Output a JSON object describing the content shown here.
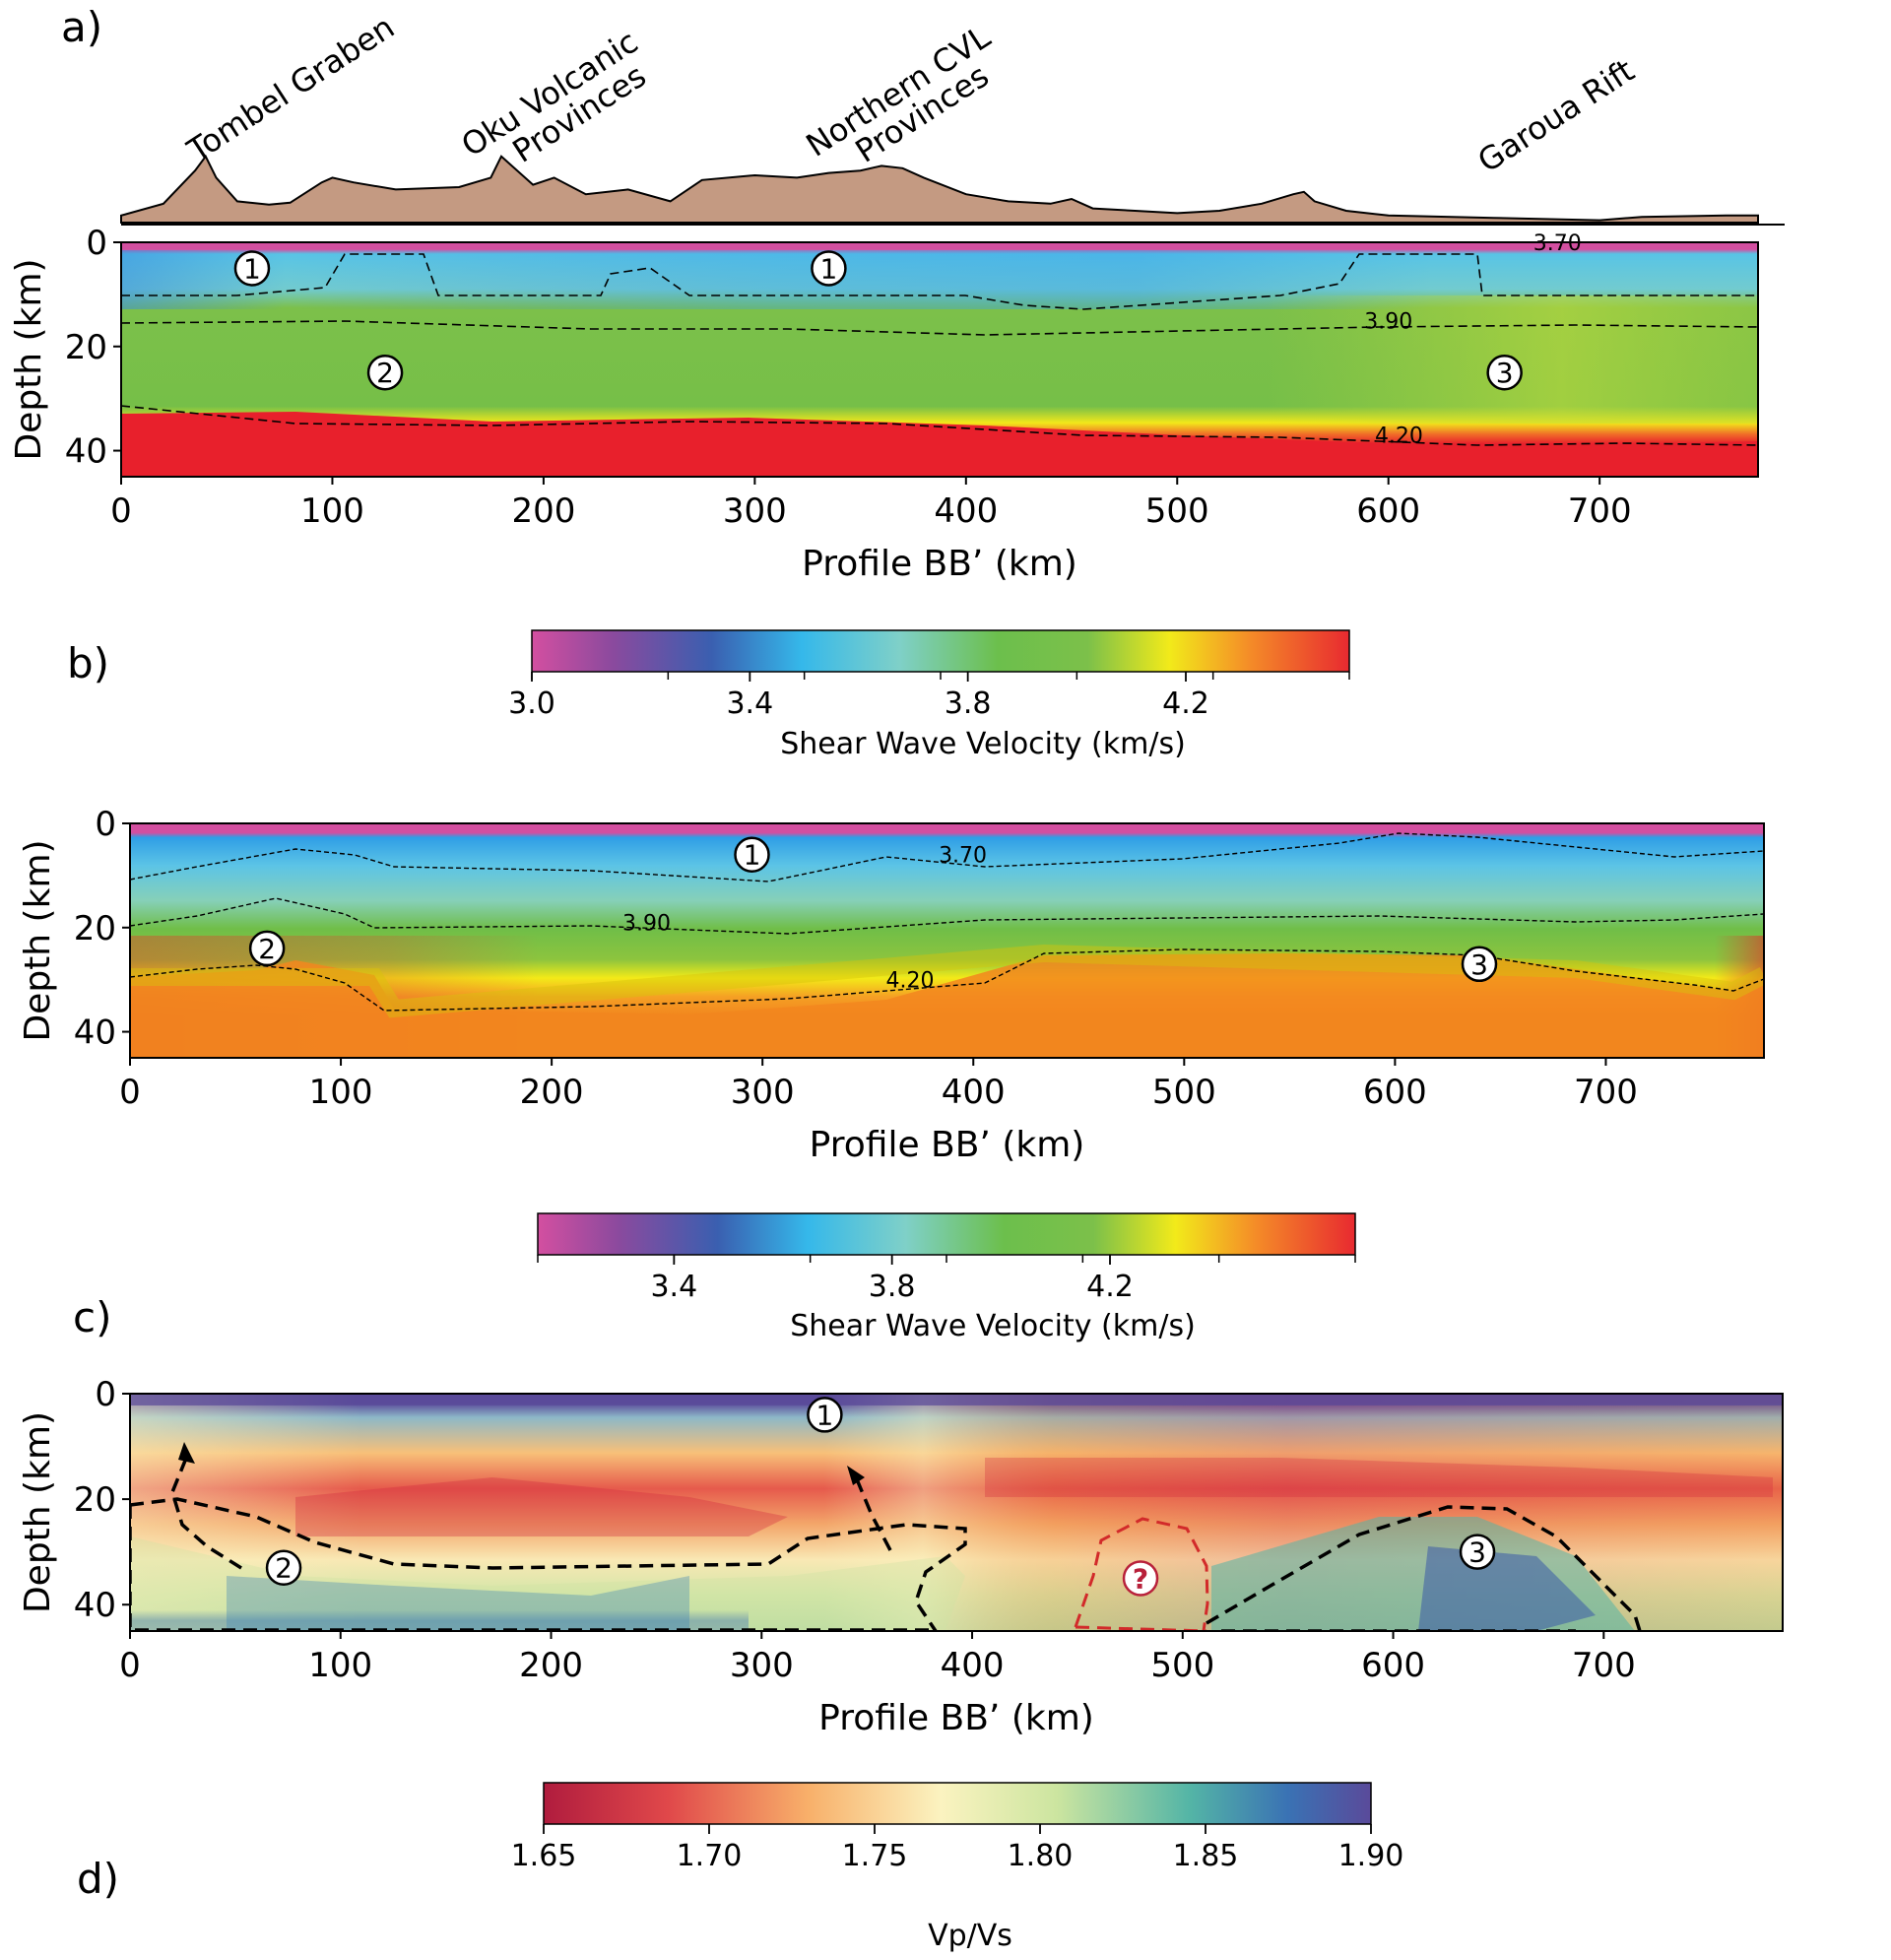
{
  "panel_labels": [
    "a)",
    "b)",
    "c)",
    "d)"
  ],
  "colors": {
    "topography_fill": "#c49a82",
    "dashed_red": "#d22a2a",
    "region_q": "#b8203a"
  },
  "chart_data": [
    {
      "type": "line",
      "panel": "a",
      "description_elements": "topography",
      "annotations": [
        {
          "text": "Tombel Graben",
          "x": 40
        },
        {
          "text": "Oku Volcanic",
          "x": 190
        },
        {
          "text": "Provinces",
          "x": 205
        },
        {
          "text": "Northern CVL",
          "x": 355
        },
        {
          "text": "Provinces",
          "x": 375
        },
        {
          "text": "Garoua Rift",
          "x": 680
        }
      ],
      "x": [
        0,
        20,
        35,
        40,
        45,
        55,
        70,
        80,
        95,
        100,
        110,
        130,
        160,
        175,
        180,
        185,
        195,
        205,
        220,
        240,
        260,
        275,
        300,
        320,
        335,
        350,
        360,
        370,
        380,
        400,
        420,
        440,
        450,
        460,
        480,
        500,
        520,
        540,
        555,
        560,
        565,
        580,
        600,
        650,
        700,
        720,
        760,
        775
      ],
      "y": [
        15,
        40,
        110,
        140,
        95,
        45,
        38,
        42,
        85,
        95,
        85,
        70,
        75,
        95,
        140,
        120,
        80,
        95,
        60,
        70,
        45,
        90,
        100,
        95,
        105,
        110,
        120,
        115,
        95,
        60,
        45,
        40,
        50,
        30,
        25,
        20,
        25,
        40,
        60,
        65,
        45,
        25,
        15,
        10,
        5,
        12,
        15,
        15
      ]
    },
    {
      "type": "heatmap",
      "panel": "a",
      "xlabel": "Profile BB’ (km)",
      "ylabel": "Depth (km)",
      "xlim": [
        0,
        775
      ],
      "ylim": [
        45,
        0
      ],
      "xticks": [
        0,
        100,
        200,
        300,
        400,
        500,
        600,
        700
      ],
      "yticks": [
        0,
        20,
        40
      ],
      "contour_labels": [
        {
          "text": "3.70",
          "x": 680,
          "y": 0
        },
        {
          "text": "3.90",
          "x": 600,
          "y": 15
        },
        {
          "text": "4.20",
          "x": 605,
          "y": 37
        }
      ],
      "regions": [
        {
          "text": "1",
          "x": 62,
          "y": 5
        },
        {
          "text": "1",
          "x": 335,
          "y": 5
        },
        {
          "text": "2",
          "x": 125,
          "y": 25
        },
        {
          "text": "3",
          "x": 655,
          "y": 25
        }
      ]
    },
    {
      "type": "heatmap",
      "panel": "b",
      "colorbar": {
        "title": "Shear Wave Velocity (km/s)",
        "ticks": [
          "3.0",
          "3.4",
          "3.8",
          "4.2"
        ],
        "tick_values": [
          3.0,
          3.4,
          3.8,
          4.2
        ],
        "range": [
          3.0,
          4.5
        ]
      },
      "xlabel": "Profile BB’ (km)",
      "ylabel": "Depth (km)",
      "xlim": [
        0,
        775
      ],
      "ylim": [
        45,
        0
      ],
      "xticks": [
        0,
        100,
        200,
        300,
        400,
        500,
        600,
        700
      ],
      "yticks": [
        0,
        20,
        40
      ],
      "contour_labels": [
        {
          "text": "3.70",
          "x": 395,
          "y": 6
        },
        {
          "text": "3.90",
          "x": 245,
          "y": 19
        },
        {
          "text": "4.20",
          "x": 370,
          "y": 30
        }
      ],
      "regions": [
        {
          "text": "1",
          "x": 295,
          "y": 6
        },
        {
          "text": "2",
          "x": 65,
          "y": 24
        },
        {
          "text": "3",
          "x": 640,
          "y": 27
        }
      ]
    },
    {
      "type": "heatmap",
      "panel": "c",
      "colorbar": {
        "title": "Shear Wave Velocity (km/s)",
        "ticks": [
          "3.4",
          "3.8",
          "4.2"
        ],
        "tick_values": [
          3.4,
          3.8,
          4.2
        ],
        "range": [
          3.15,
          4.65
        ]
      },
      "xlabel": "Profile BB’ (km)",
      "ylabel": "Depth (km)",
      "xlim": [
        0,
        785
      ],
      "ylim": [
        45,
        0
      ],
      "xticks": [
        0,
        100,
        200,
        300,
        400,
        500,
        600,
        700
      ],
      "yticks": [
        0,
        20,
        40
      ],
      "regions": [
        {
          "text": "1",
          "x": 330,
          "y": 4
        },
        {
          "text": "2",
          "x": 73,
          "y": 33
        },
        {
          "text": "3",
          "x": 640,
          "y": 30
        },
        {
          "text": "?",
          "x": 480,
          "y": 35
        }
      ]
    },
    {
      "type": "heatmap",
      "panel": "d",
      "colorbar": {
        "title": "Vp/Vs",
        "ticks": [
          "1.65",
          "1.70",
          "1.75",
          "1.80",
          "1.85",
          "1.90"
        ],
        "tick_values": [
          1.65,
          1.7,
          1.75,
          1.8,
          1.85,
          1.9
        ],
        "range": [
          1.65,
          1.9
        ]
      }
    }
  ]
}
